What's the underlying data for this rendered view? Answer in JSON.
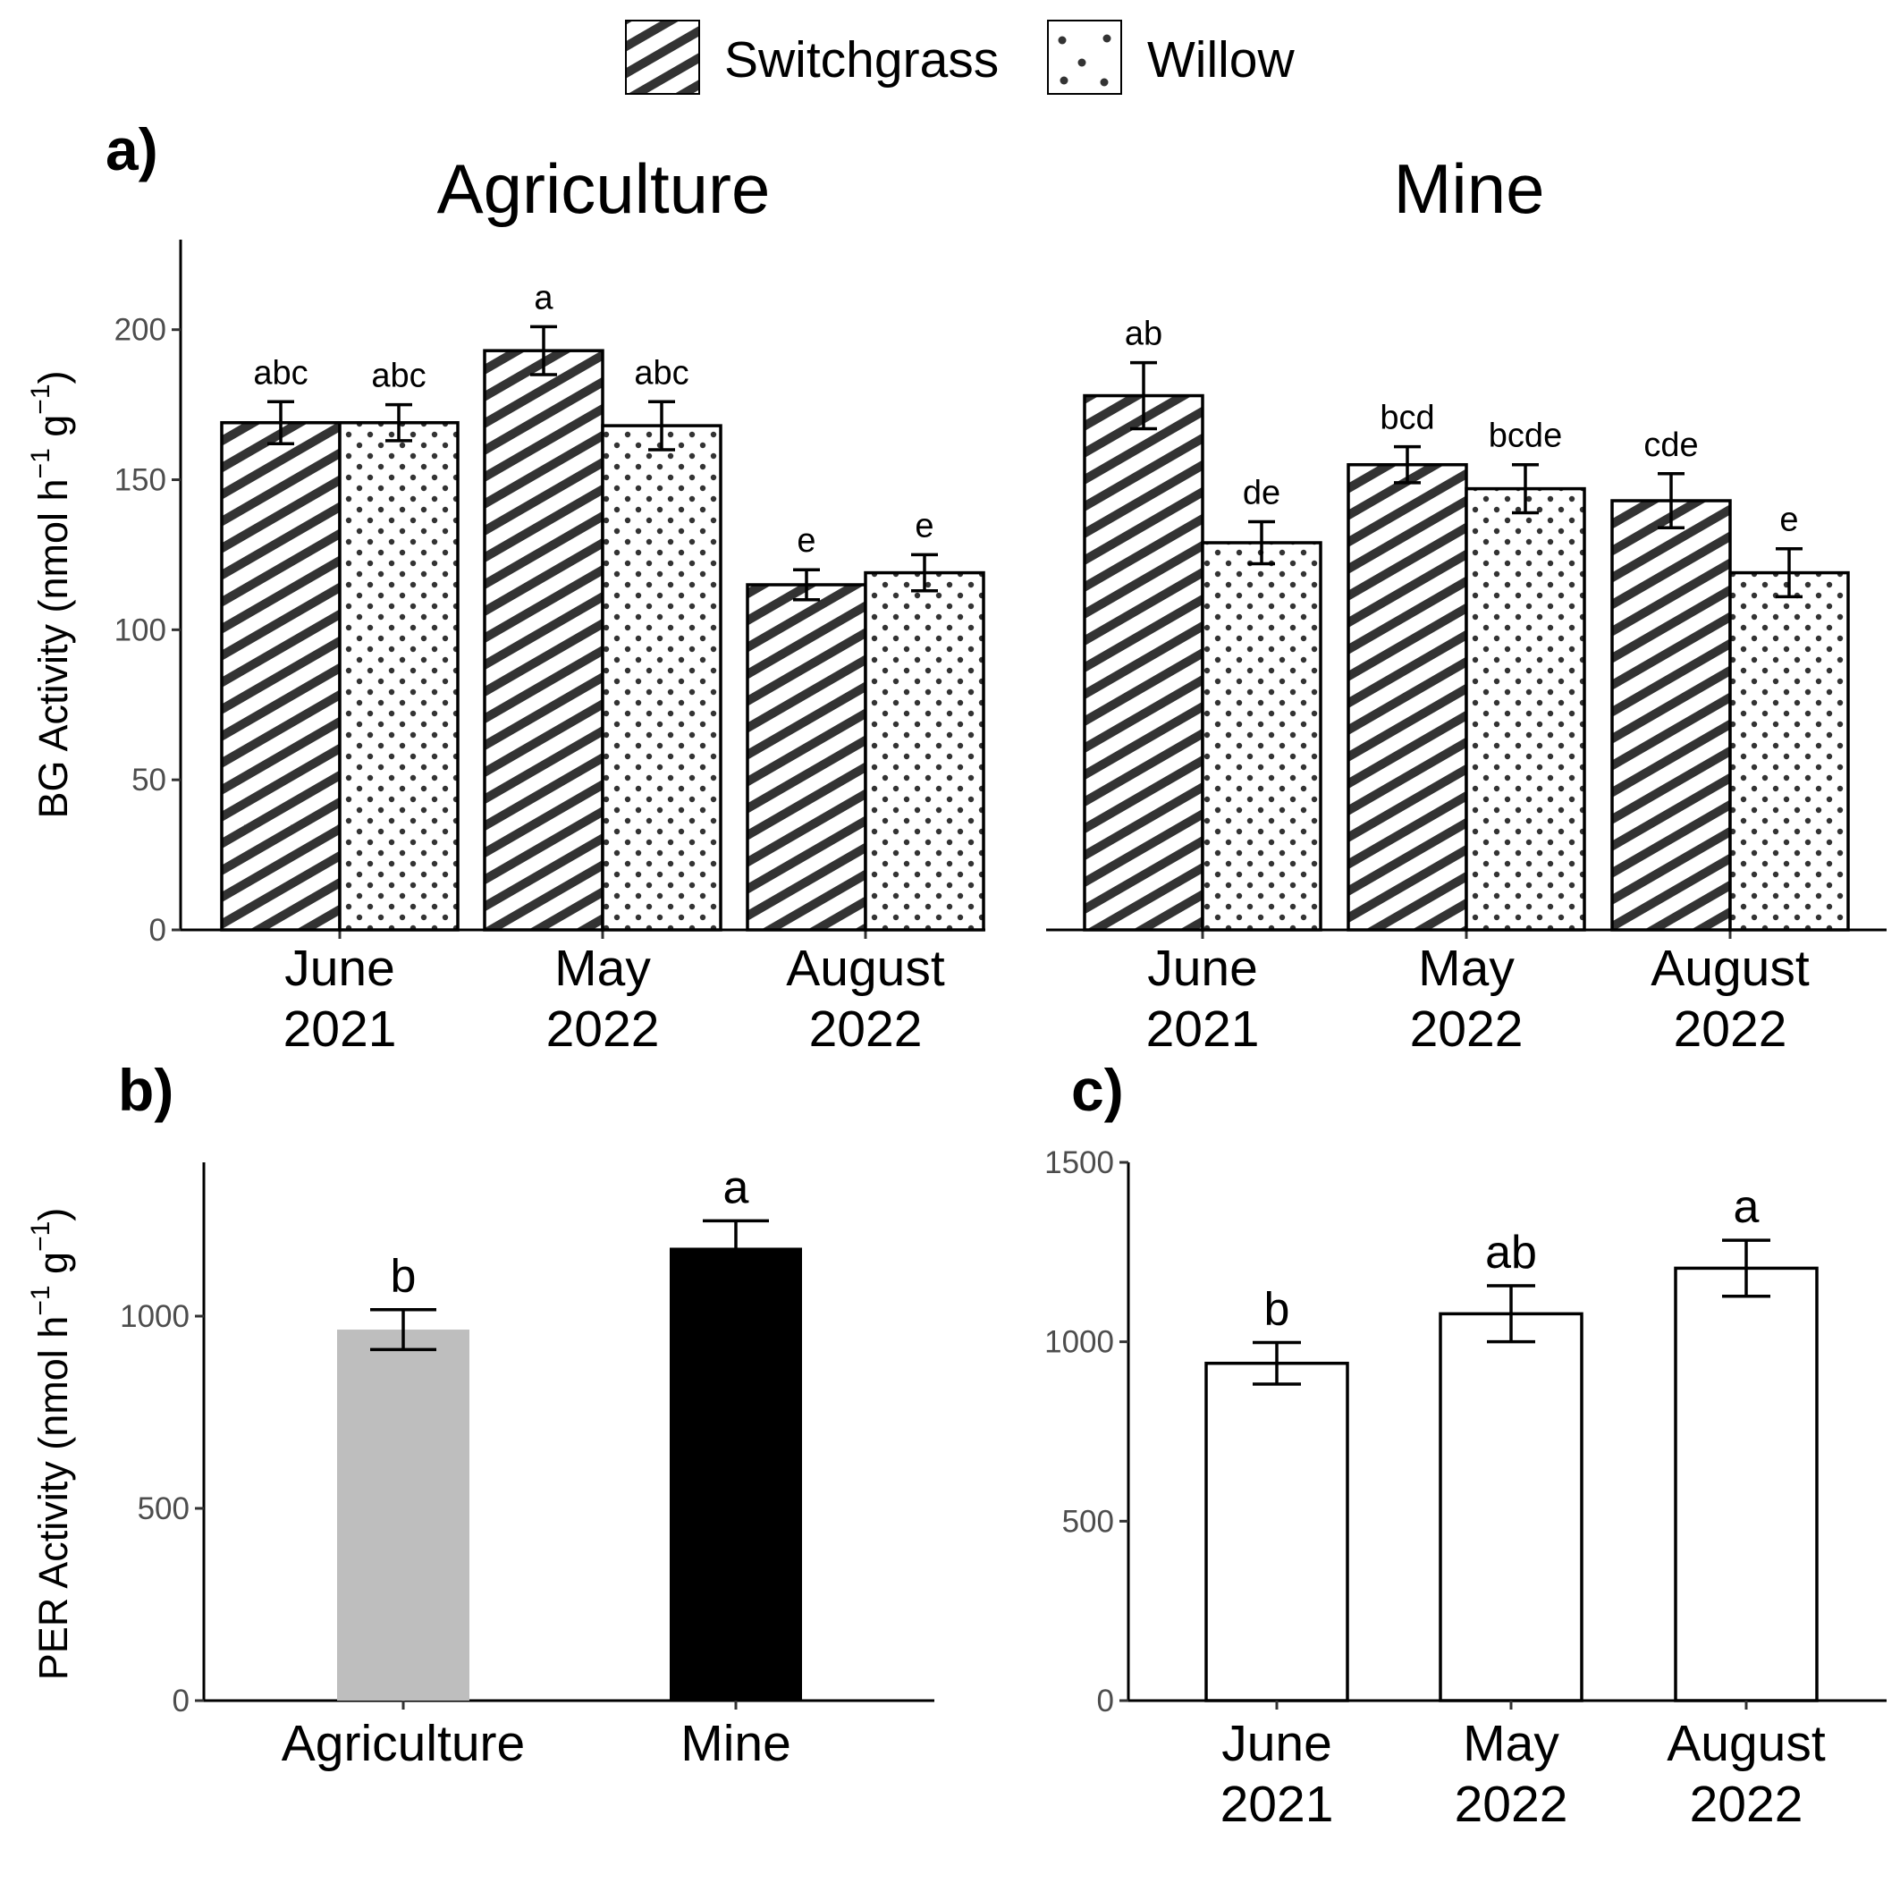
{
  "legend": {
    "items": [
      {
        "label": "Switchgrass",
        "pattern": "hatch"
      },
      {
        "label": "Willow",
        "pattern": "dots"
      }
    ]
  },
  "colors": {
    "pattern_ink": "#333333",
    "agriculture_bar": "#bebebe",
    "mine_bar": "#000000",
    "plain_bar": "#ffffff"
  },
  "chart_data": [
    {
      "id": "a",
      "type": "bar",
      "panel_label": "a)",
      "ylabel": "BG Activity (nmol h",
      "ylabel_sup1": "−1",
      "ylabel_mid": " g",
      "ylabel_sup2": "−1",
      "ylabel_end": ")",
      "ylim": [
        0,
        230
      ],
      "yticks": [
        0,
        50,
        100,
        150,
        200
      ],
      "categories": [
        {
          "line1": "June",
          "line2": "2021"
        },
        {
          "line1": "May",
          "line2": "2022"
        },
        {
          "line1": "August",
          "line2": "2022"
        }
      ],
      "facets": [
        {
          "title": "Agriculture",
          "series": [
            {
              "name": "Switchgrass",
              "values": [
                169,
                193,
                115
              ],
              "errors": [
                7,
                8,
                5
              ],
              "letters": [
                "abc",
                "a",
                "e"
              ]
            },
            {
              "name": "Willow",
              "values": [
                169,
                168,
                119
              ],
              "errors": [
                6,
                8,
                6
              ],
              "letters": [
                "abc",
                "abc",
                "e"
              ]
            }
          ]
        },
        {
          "title": "Mine",
          "series": [
            {
              "name": "Switchgrass",
              "values": [
                178,
                155,
                143
              ],
              "errors": [
                11,
                6,
                9
              ],
              "letters": [
                "ab",
                "bcd",
                "cde"
              ]
            },
            {
              "name": "Willow",
              "values": [
                129,
                147,
                119
              ],
              "errors": [
                7,
                8,
                8
              ],
              "letters": [
                "de",
                "bcde",
                "e"
              ]
            }
          ]
        }
      ]
    },
    {
      "id": "b",
      "type": "bar",
      "panel_label": "b)",
      "ylabel": "PER Activity (nmol h",
      "ylabel_sup1": "−1",
      "ylabel_mid": " g",
      "ylabel_sup2": "−1",
      "ylabel_end": ")",
      "ylim": [
        0,
        1400
      ],
      "yticks": [
        0,
        500,
        1000
      ],
      "categories": [
        "Agriculture",
        "Mine"
      ],
      "values": [
        965,
        1178
      ],
      "errors": [
        52,
        70
      ],
      "letters": [
        "b",
        "a"
      ]
    },
    {
      "id": "c",
      "type": "bar",
      "panel_label": "c)",
      "ylim": [
        0,
        1500
      ],
      "yticks": [
        0,
        500,
        1000,
        1500
      ],
      "categories": [
        {
          "line1": "June",
          "line2": "2021"
        },
        {
          "line1": "May",
          "line2": "2022"
        },
        {
          "line1": "August",
          "line2": "2022"
        }
      ],
      "values": [
        940,
        1078,
        1205
      ],
      "errors": [
        58,
        78,
        78
      ],
      "letters": [
        "b",
        "ab",
        "a"
      ]
    }
  ]
}
